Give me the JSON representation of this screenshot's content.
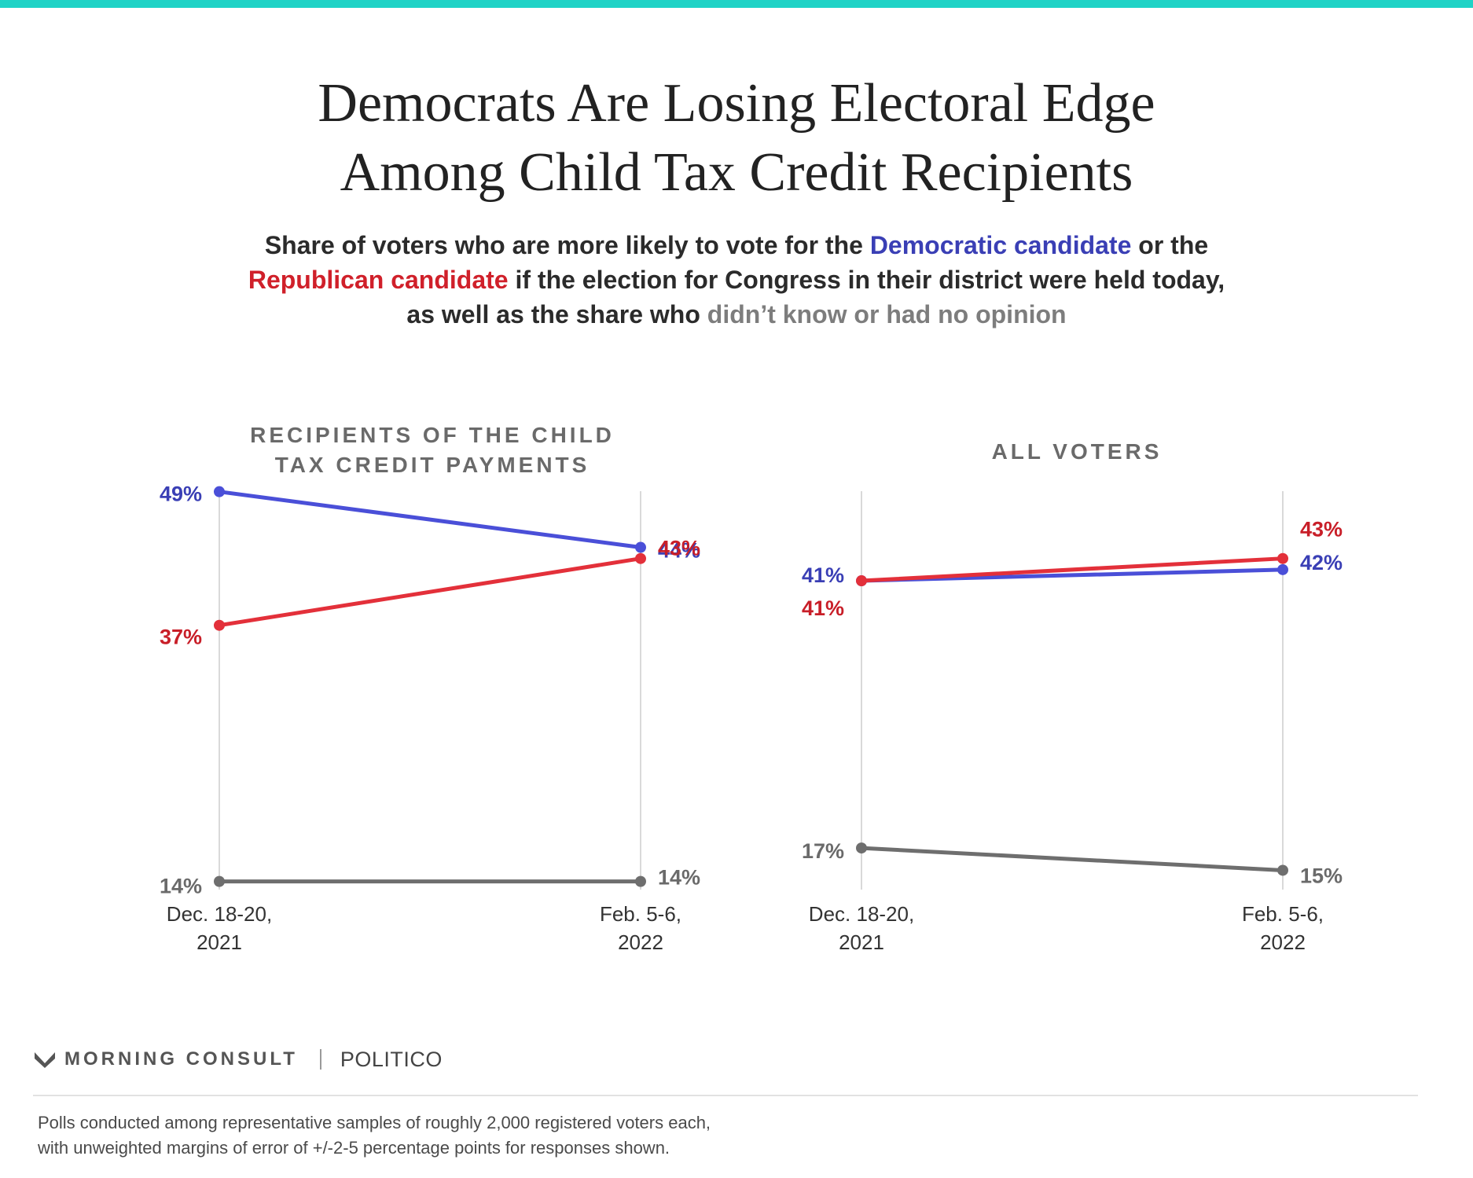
{
  "colors": {
    "accent_bar": "#1fd3c6",
    "democratic": "#4a4fd8",
    "republican": "#e3303a",
    "no_opinion": "#6e6e6e",
    "gridline": "#d9d9d9"
  },
  "title": {
    "line1": "Democrats Are Losing Electoral Edge",
    "line2": "Among Child Tax Credit Recipients"
  },
  "subtitle": {
    "part1": "Share of voters who are more likely to vote for the ",
    "dem": "Democratic candidate",
    "part2": " or the",
    "rep": "Republican candidate",
    "part3": " if the election for Congress in their district were held today,",
    "part4": "as well as the share who ",
    "dk": "didn’t know or had no opinion"
  },
  "chart_data": [
    {
      "type": "line",
      "title_lines": [
        "RECIPIENTS OF THE CHILD",
        "TAX CREDIT PAYMENTS"
      ],
      "x": [
        [
          "Dec. 18-20,",
          "2021"
        ],
        [
          "Feb. 5-6,",
          "2022"
        ]
      ],
      "ylim": [
        0,
        60
      ],
      "grid": "vertical",
      "series": [
        {
          "key": "dem",
          "values": [
            49,
            44
          ],
          "labels": [
            "49%",
            "44%"
          ]
        },
        {
          "key": "rep",
          "values": [
            37,
            43
          ],
          "labels": [
            "37%",
            "43%"
          ]
        },
        {
          "key": "dk",
          "values": [
            14,
            14
          ],
          "labels": [
            "14%",
            "14%"
          ]
        }
      ]
    },
    {
      "type": "line",
      "title_lines": [
        "ALL VOTERS"
      ],
      "x": [
        [
          "Dec. 18-20,",
          "2021"
        ],
        [
          "Feb. 5-6,",
          "2022"
        ]
      ],
      "ylim": [
        0,
        60
      ],
      "grid": "vertical",
      "series": [
        {
          "key": "dem",
          "values": [
            41,
            42
          ],
          "labels": [
            "41%",
            "42%"
          ]
        },
        {
          "key": "rep",
          "values": [
            41,
            43
          ],
          "labels": [
            "41%",
            "43%"
          ]
        },
        {
          "key": "dk",
          "values": [
            17,
            15
          ],
          "labels": [
            "17%",
            "15%"
          ]
        }
      ]
    }
  ],
  "footer": {
    "brand": "MORNING CONSULT",
    "brand_mark": "°",
    "partner": "POLITICO",
    "note_line1": "Polls conducted among representative samples of roughly 2,000 registered voters each,",
    "note_line2": "with unweighted margins of error of +/-2-5 percentage points for responses shown."
  }
}
